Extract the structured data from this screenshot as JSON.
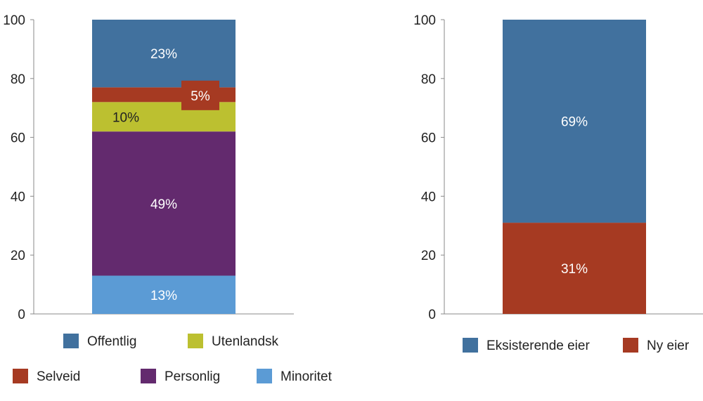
{
  "chart_data": [
    {
      "type": "bar",
      "stacked": true,
      "ylim": [
        0,
        100
      ],
      "yticks": [
        0,
        20,
        40,
        60,
        80,
        100
      ],
      "grid": false,
      "series": [
        {
          "name": "Minoritet",
          "value": 13,
          "label": "13%",
          "color": "#5b9bd5",
          "label_color": "#ffffff"
        },
        {
          "name": "Personlig",
          "value": 49,
          "label": "49%",
          "color": "#632a6e",
          "label_color": "#ffffff"
        },
        {
          "name": "Utenlandsk",
          "value": 10,
          "label": "10%",
          "color": "#bcc030",
          "label_color": "#222222"
        },
        {
          "name": "Selveid",
          "value": 5,
          "label": "5%",
          "color": "#a63a22",
          "label_color": "#ffffff",
          "callout": true
        },
        {
          "name": "Offentlig",
          "value": 23,
          "label": "23%",
          "color": "#41719e",
          "label_color": "#ffffff"
        }
      ],
      "legend": [
        "Offentlig",
        "Utenlandsk",
        "Selveid",
        "Personlig",
        "Minoritet"
      ]
    },
    {
      "type": "bar",
      "stacked": true,
      "ylim": [
        0,
        100
      ],
      "yticks": [
        0,
        20,
        40,
        60,
        80,
        100
      ],
      "grid": false,
      "series": [
        {
          "name": "Ny eier",
          "value": 31,
          "label": "31%",
          "color": "#a63a22",
          "label_color": "#ffffff"
        },
        {
          "name": "Eksisterende eier",
          "value": 69,
          "label": "69%",
          "color": "#41719e",
          "label_color": "#ffffff"
        }
      ],
      "legend": [
        "Eksisterende eier",
        "Ny eier"
      ]
    }
  ]
}
